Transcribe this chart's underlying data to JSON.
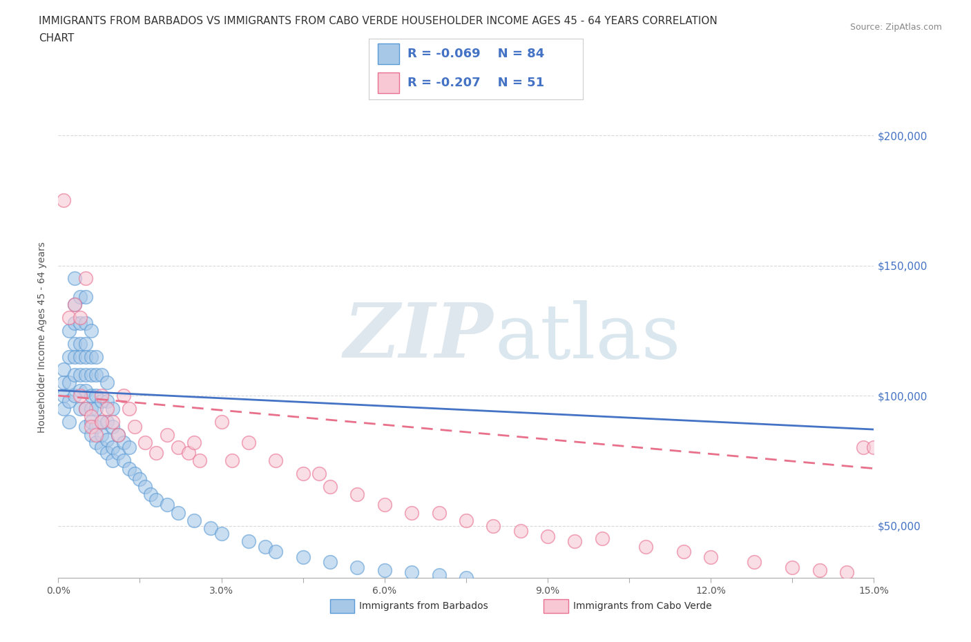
{
  "title_line1": "IMMIGRANTS FROM BARBADOS VS IMMIGRANTS FROM CABO VERDE HOUSEHOLDER INCOME AGES 45 - 64 YEARS CORRELATION",
  "title_line2": "CHART",
  "source_text": "Source: ZipAtlas.com",
  "ylabel": "Householder Income Ages 45 - 64 years",
  "xlim": [
    0.0,
    0.15
  ],
  "ylim": [
    30000,
    215000
  ],
  "xticks": [
    0.0,
    0.015,
    0.03,
    0.045,
    0.06,
    0.075,
    0.09,
    0.105,
    0.12,
    0.135,
    0.15
  ],
  "xticklabels": [
    "0.0%",
    "",
    "3.0%",
    "",
    "6.0%",
    "",
    "9.0%",
    "",
    "12.0%",
    "",
    "15.0%"
  ],
  "yticks": [
    50000,
    100000,
    150000,
    200000
  ],
  "yticklabels": [
    "$50,000",
    "$100,000",
    "$150,000",
    "$200,000"
  ],
  "barbados_color": "#a8c8e8",
  "barbados_edge_color": "#5b9bd5",
  "cabo_verde_color": "#f8c8d4",
  "cabo_verde_edge_color": "#e87090",
  "barbados_R": -0.069,
  "barbados_N": 84,
  "cabo_verde_R": -0.207,
  "cabo_verde_N": 51,
  "barbados_line_color": "#4472c4",
  "cabo_verde_line_color": "#e8708a",
  "legend_text_color": "#4472c4",
  "watermark_zip_color": "#c8d8e8",
  "watermark_atlas_color": "#a8c8e0",
  "grid_color": "#d0d0d0",
  "background_color": "#ffffff",
  "barbados_line_y0": 102000,
  "barbados_line_y1": 87000,
  "cabo_verde_line_y0": 100000,
  "cabo_verde_line_y1": 72000,
  "barbados_x": [
    0.001,
    0.001,
    0.001,
    0.001,
    0.002,
    0.002,
    0.002,
    0.002,
    0.002,
    0.003,
    0.003,
    0.003,
    0.003,
    0.003,
    0.003,
    0.003,
    0.004,
    0.004,
    0.004,
    0.004,
    0.004,
    0.004,
    0.004,
    0.005,
    0.005,
    0.005,
    0.005,
    0.005,
    0.005,
    0.005,
    0.005,
    0.006,
    0.006,
    0.006,
    0.006,
    0.006,
    0.006,
    0.006,
    0.007,
    0.007,
    0.007,
    0.007,
    0.007,
    0.007,
    0.008,
    0.008,
    0.008,
    0.008,
    0.008,
    0.009,
    0.009,
    0.009,
    0.009,
    0.009,
    0.01,
    0.01,
    0.01,
    0.01,
    0.011,
    0.011,
    0.012,
    0.012,
    0.013,
    0.013,
    0.014,
    0.015,
    0.016,
    0.017,
    0.018,
    0.02,
    0.022,
    0.025,
    0.028,
    0.03,
    0.035,
    0.038,
    0.04,
    0.045,
    0.05,
    0.055,
    0.06,
    0.065,
    0.07,
    0.075
  ],
  "barbados_y": [
    95000,
    100000,
    105000,
    110000,
    90000,
    98000,
    105000,
    115000,
    125000,
    100000,
    108000,
    115000,
    120000,
    128000,
    135000,
    145000,
    95000,
    102000,
    108000,
    115000,
    120000,
    128000,
    138000,
    88000,
    95000,
    102000,
    108000,
    115000,
    120000,
    128000,
    138000,
    85000,
    90000,
    95000,
    100000,
    108000,
    115000,
    125000,
    82000,
    88000,
    95000,
    100000,
    108000,
    115000,
    80000,
    85000,
    90000,
    98000,
    108000,
    78000,
    83000,
    90000,
    98000,
    105000,
    75000,
    80000,
    88000,
    95000,
    78000,
    85000,
    75000,
    82000,
    72000,
    80000,
    70000,
    68000,
    65000,
    62000,
    60000,
    58000,
    55000,
    52000,
    49000,
    47000,
    44000,
    42000,
    40000,
    38000,
    36000,
    34000,
    33000,
    32000,
    31000,
    30000
  ],
  "cabo_verde_x": [
    0.001,
    0.002,
    0.003,
    0.004,
    0.004,
    0.005,
    0.006,
    0.006,
    0.007,
    0.008,
    0.009,
    0.01,
    0.011,
    0.012,
    0.013,
    0.014,
    0.016,
    0.018,
    0.02,
    0.022,
    0.024,
    0.026,
    0.03,
    0.035,
    0.04,
    0.045,
    0.05,
    0.055,
    0.06,
    0.065,
    0.07,
    0.075,
    0.08,
    0.085,
    0.09,
    0.095,
    0.1,
    0.108,
    0.115,
    0.12,
    0.128,
    0.135,
    0.14,
    0.145,
    0.148,
    0.15,
    0.005,
    0.008,
    0.025,
    0.032,
    0.048
  ],
  "cabo_verde_y": [
    175000,
    130000,
    135000,
    130000,
    100000,
    95000,
    92000,
    88000,
    85000,
    100000,
    95000,
    90000,
    85000,
    100000,
    95000,
    88000,
    82000,
    78000,
    85000,
    80000,
    78000,
    75000,
    90000,
    82000,
    75000,
    70000,
    65000,
    62000,
    58000,
    55000,
    55000,
    52000,
    50000,
    48000,
    46000,
    44000,
    45000,
    42000,
    40000,
    38000,
    36000,
    34000,
    33000,
    32000,
    80000,
    80000,
    145000,
    90000,
    82000,
    75000,
    70000
  ]
}
